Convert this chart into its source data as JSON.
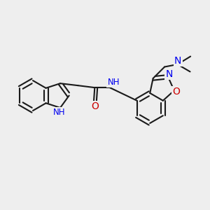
{
  "background_color": "#eeeeee",
  "bond_color": "#1a1a1a",
  "N_color": "#0000ee",
  "O_color": "#cc0000",
  "bond_width": 1.5,
  "figsize": [
    3.0,
    3.0
  ],
  "dpi": 100,
  "xlim": [
    0,
    10
  ],
  "ylim": [
    0,
    10
  ]
}
